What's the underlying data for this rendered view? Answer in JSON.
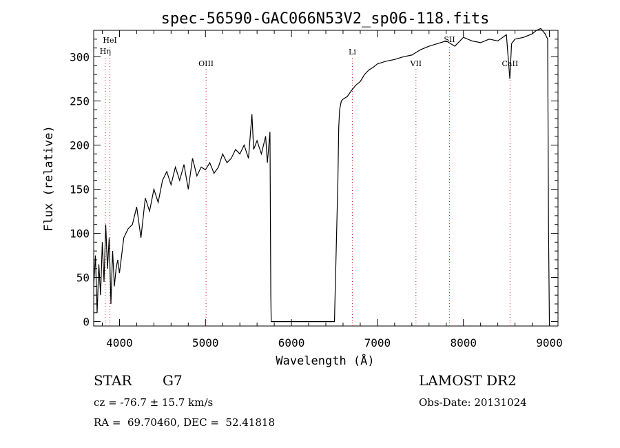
{
  "chart_data": {
    "type": "line",
    "title": "spec-56590-GAC066N53V2_sp06-118.fits",
    "xlabel": "Wavelength (Å)",
    "ylabel": "Flux (relative)",
    "xlim": [
      3700,
      9100
    ],
    "ylim": [
      -5,
      330
    ],
    "xticks": [
      4000,
      5000,
      6000,
      7000,
      8000,
      9000
    ],
    "yticks": [
      0,
      50,
      100,
      150,
      200,
      250,
      300
    ],
    "grid": false,
    "series": [
      {
        "x": [
          3700,
          3720,
          3740,
          3760,
          3780,
          3800,
          3820,
          3840,
          3860,
          3880,
          3900,
          3920,
          3940,
          3960,
          3980,
          4000,
          4050,
          4100,
          4150,
          4200,
          4250,
          4300,
          4350,
          4400,
          4450,
          4500,
          4550,
          4600,
          4650,
          4700,
          4750,
          4800,
          4850,
          4900,
          4950,
          5000,
          5050,
          5100,
          5150,
          5200,
          5250,
          5300,
          5350,
          5400,
          5450,
          5500,
          5540,
          5560,
          5600,
          5650,
          5700,
          5720,
          5750,
          5760,
          5765,
          5770,
          5780,
          5800,
          6000,
          6300,
          6500,
          6540,
          6550,
          6560,
          6570,
          6580,
          6600,
          6650,
          6700,
          6750,
          6800,
          6850,
          6900,
          6950,
          7000,
          7100,
          7200,
          7300,
          7400,
          7450,
          7500,
          7600,
          7700,
          7800,
          7900,
          8000,
          8100,
          8200,
          8300,
          8400,
          8500,
          8540,
          8560,
          8600,
          8700,
          8800,
          8850,
          8900,
          8950,
          8980,
          8990,
          9000
        ],
        "y": [
          40,
          75,
          10,
          65,
          30,
          90,
          45,
          110,
          60,
          95,
          20,
          80,
          40,
          60,
          70,
          55,
          95,
          105,
          110,
          130,
          95,
          140,
          125,
          150,
          135,
          160,
          170,
          155,
          175,
          160,
          178,
          150,
          185,
          165,
          175,
          172,
          180,
          168,
          175,
          190,
          180,
          185,
          195,
          190,
          200,
          185,
          235,
          195,
          205,
          190,
          210,
          180,
          215,
          30,
          0,
          0,
          0,
          0,
          0,
          0,
          0,
          160,
          220,
          240,
          245,
          250,
          252,
          255,
          262,
          268,
          272,
          280,
          285,
          288,
          292,
          295,
          297,
          300,
          302,
          305,
          308,
          312,
          315,
          318,
          312,
          322,
          318,
          316,
          320,
          318,
          325,
          275,
          315,
          320,
          322,
          326,
          330,
          332,
          326,
          320,
          100,
          0
        ],
        "color": "#000000"
      }
    ],
    "lines": [
      {
        "label": "HeI",
        "x": 3889
      },
      {
        "label": "Hη",
        "x": 3835
      },
      {
        "label": "OIII",
        "x": 5007
      },
      {
        "label": "Li",
        "x": 6708
      },
      {
        "label": "VII",
        "x": 7448
      },
      {
        "label": "SII",
        "x": 7838
      },
      {
        "label": "CaII",
        "x": 8542
      }
    ]
  },
  "info": {
    "object_class": "STAR",
    "subclass": "G7",
    "survey": "LAMOST DR2",
    "cz": "cz = -76.7 ± 15.7 km/s",
    "obs_date": "Obs-Date: 20131024",
    "radec": "RA =  69.70460, DEC =  52.41818"
  }
}
